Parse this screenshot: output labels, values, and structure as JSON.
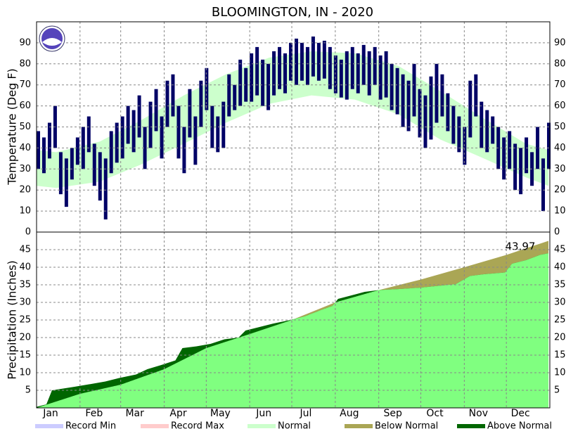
{
  "chart_data": [
    {
      "type": "range-bar",
      "title": "BLOOMINGTON, IN - 2020",
      "ylabel": "Temperature (Deg F)",
      "xlim": [
        1,
        367
      ],
      "xticks": [
        1,
        32,
        61,
        92,
        122,
        153,
        183,
        214,
        245,
        275,
        306,
        336
      ],
      "ylim": [
        0,
        100
      ],
      "yticks": [
        0,
        10,
        20,
        30,
        40,
        50,
        60,
        70,
        80,
        90
      ],
      "grid": true,
      "x": [
        1,
        5,
        9,
        13,
        17,
        21,
        25,
        29,
        33,
        37,
        41,
        45,
        49,
        53,
        57,
        61,
        65,
        69,
        73,
        77,
        81,
        85,
        89,
        93,
        97,
        101,
        105,
        109,
        113,
        117,
        121,
        125,
        129,
        133,
        137,
        141,
        145,
        149,
        153,
        157,
        161,
        165,
        169,
        173,
        177,
        181,
        185,
        189,
        193,
        197,
        201,
        205,
        209,
        213,
        217,
        221,
        225,
        229,
        233,
        237,
        241,
        245,
        249,
        253,
        257,
        261,
        265,
        269,
        273,
        277,
        281,
        285,
        289,
        293,
        297,
        301,
        305,
        309,
        313,
        317,
        321,
        325,
        329,
        333,
        337,
        341,
        345,
        349,
        353,
        357,
        361,
        365
      ],
      "high": [
        48,
        45,
        52,
        60,
        38,
        35,
        40,
        45,
        50,
        55,
        42,
        38,
        35,
        48,
        52,
        55,
        60,
        58,
        65,
        50,
        62,
        68,
        55,
        72,
        75,
        60,
        50,
        68,
        55,
        72,
        78,
        60,
        55,
        62,
        75,
        70,
        82,
        78,
        85,
        88,
        82,
        80,
        86,
        88,
        85,
        90,
        92,
        90,
        88,
        93,
        90,
        91,
        88,
        84,
        82,
        86,
        88,
        85,
        89,
        86,
        88,
        84,
        86,
        80,
        78,
        75,
        72,
        80,
        68,
        65,
        74,
        80,
        75,
        66,
        60,
        55,
        50,
        72,
        75,
        62,
        58,
        55,
        50,
        45,
        48,
        42,
        40,
        45,
        38,
        50,
        35,
        52
      ],
      "low": [
        30,
        28,
        35,
        40,
        18,
        12,
        25,
        32,
        30,
        38,
        22,
        15,
        6,
        28,
        33,
        35,
        42,
        38,
        45,
        30,
        40,
        48,
        35,
        50,
        55,
        35,
        28,
        45,
        32,
        50,
        58,
        40,
        38,
        40,
        55,
        58,
        60,
        62,
        62,
        65,
        60,
        58,
        65,
        68,
        66,
        72,
        70,
        72,
        70,
        74,
        72,
        73,
        68,
        66,
        64,
        63,
        68,
        66,
        70,
        65,
        70,
        63,
        64,
        58,
        56,
        50,
        48,
        55,
        45,
        40,
        44,
        52,
        55,
        48,
        42,
        38,
        32,
        45,
        55,
        40,
        38,
        42,
        30,
        25,
        30,
        20,
        18,
        28,
        22,
        30,
        10,
        30
      ],
      "color": "#000066",
      "normal_x": [
        1,
        15,
        46,
        75,
        106,
        136,
        167,
        197,
        228,
        259,
        289,
        320,
        350,
        366
      ],
      "normal_high": [
        39,
        38,
        43,
        53,
        65,
        75,
        83,
        86,
        85,
        79,
        67,
        54,
        42,
        39
      ],
      "normal_low": [
        22,
        21,
        24,
        32,
        42,
        52,
        61,
        65,
        63,
        56,
        44,
        35,
        26,
        22
      ],
      "normal_color": "#ccffcc"
    },
    {
      "type": "cumulative-area",
      "ylabel": "Precipitation (Inches)",
      "annotation": "43.97",
      "xlim": [
        1,
        367
      ],
      "xticks": [
        {
          "value": 1,
          "label": "Jan"
        },
        {
          "value": 32,
          "label": "Feb"
        },
        {
          "value": 61,
          "label": "Mar"
        },
        {
          "value": 92,
          "label": "Apr"
        },
        {
          "value": 122,
          "label": "May"
        },
        {
          "value": 153,
          "label": "Jun"
        },
        {
          "value": 183,
          "label": "Jul"
        },
        {
          "value": 214,
          "label": "Aug"
        },
        {
          "value": 245,
          "label": "Sep"
        },
        {
          "value": 275,
          "label": "Oct"
        },
        {
          "value": 306,
          "label": "Nov"
        },
        {
          "value": 336,
          "label": "Dec"
        }
      ],
      "ylim": [
        0,
        50
      ],
      "yticks": [
        5,
        10,
        15,
        20,
        25,
        30,
        35,
        40,
        45
      ],
      "grid": true,
      "x": [
        1,
        8,
        12,
        20,
        28,
        40,
        50,
        60,
        72,
        80,
        90,
        100,
        105,
        115,
        125,
        135,
        145,
        150,
        160,
        170,
        182,
        192,
        205,
        212,
        216,
        235,
        245,
        260,
        275,
        300,
        310,
        320,
        335,
        340,
        350,
        360,
        366
      ],
      "observed": [
        0.3,
        1.0,
        5.0,
        5.5,
        6.0,
        6.8,
        7.5,
        8.5,
        9.5,
        11.0,
        12.2,
        13.5,
        17.0,
        17.5,
        18.2,
        19.5,
        20.0,
        22.0,
        23.0,
        24.0,
        25.0,
        26.0,
        28.0,
        29.0,
        31.0,
        33.0,
        33.5,
        33.8,
        34.2,
        35.2,
        37.5,
        38.0,
        38.5,
        41.0,
        42.0,
        43.5,
        43.97
      ],
      "normal_x": [
        1,
        32,
        61,
        92,
        122,
        153,
        183,
        214,
        245,
        275,
        306,
        336,
        366
      ],
      "normal": [
        0,
        4,
        6.6,
        11,
        17,
        21,
        25,
        30,
        33.5,
        36.5,
        40,
        43.5,
        47.5
      ],
      "normal_color": "#80ff80",
      "above_color": "#006600",
      "below_color": "#aaa655"
    }
  ],
  "legend": [
    {
      "name": "Record Min",
      "color": "#ccccff"
    },
    {
      "name": "Record Max",
      "color": "#ffcccc"
    },
    {
      "name": "Normal",
      "color": "#ccffcc"
    },
    {
      "name": "Below Normal",
      "color": "#aaa655"
    },
    {
      "name": "Above Normal",
      "color": "#006600"
    }
  ]
}
